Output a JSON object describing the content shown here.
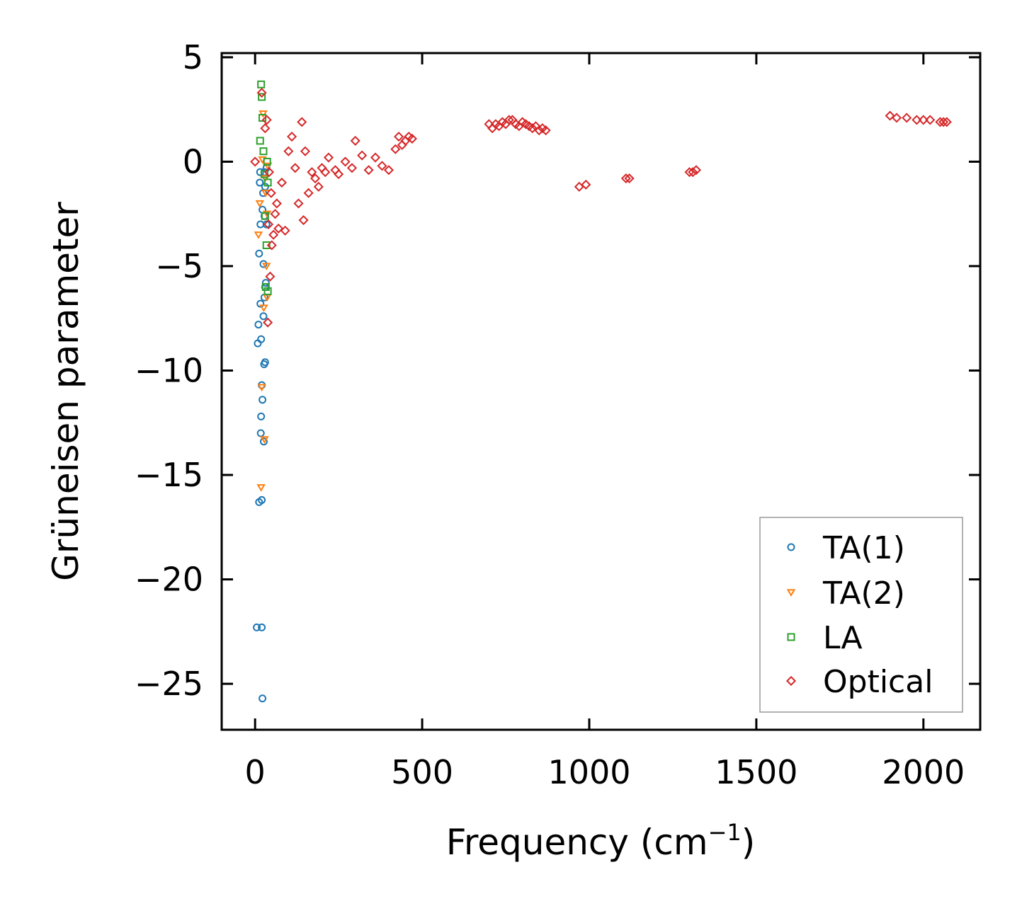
{
  "chart_data": {
    "type": "scatter",
    "title": "",
    "xlabel": "Frequency (cm",
    "xlabel_sup": "−1",
    "xlabel_tail": ")",
    "ylabel": "Grüneisen parameter",
    "xlim": [
      -100,
      2170
    ],
    "ylim": [
      -27.2,
      5.2
    ],
    "xticks": [
      0,
      500,
      1000,
      1500,
      2000
    ],
    "xtick_labels": [
      "0",
      "500",
      "1000",
      "1500",
      "2000"
    ],
    "yticks": [
      5,
      0,
      -5,
      -10,
      -15,
      -20,
      -25
    ],
    "ytick_labels": [
      "5",
      "0",
      "−5",
      "−10",
      "−15",
      "−20",
      "−25"
    ],
    "legend_position": "lower-right",
    "series": [
      {
        "name": "TA(1)",
        "marker": "circle",
        "color": "#1f77b4",
        "x": [
          5,
          8,
          10,
          12,
          12,
          14,
          15,
          16,
          16,
          17,
          18,
          18,
          20,
          20,
          20,
          22,
          22,
          22,
          24,
          25,
          25,
          26,
          27,
          28,
          28,
          28,
          30,
          30,
          30,
          32,
          34,
          34
        ],
        "y": [
          -22.3,
          -8.7,
          -7.8,
          -16.3,
          -4.4,
          -1.0,
          -0.5,
          -3.0,
          -6.8,
          -13.0,
          -8.5,
          -12.2,
          -10.7,
          -16.2,
          -22.3,
          -25.7,
          -11.4,
          -2.3,
          -1.5,
          -4.9,
          -7.4,
          -13.4,
          -9.7,
          -6.5,
          -0.5,
          -2.6,
          -9.6,
          -6.0,
          -1.2,
          -5.8,
          -3.0,
          -0.3
        ]
      },
      {
        "name": "TA(2)",
        "marker": "triangle-down",
        "color": "#ff7f0e",
        "x": [
          10,
          14,
          18,
          20,
          22,
          24,
          26,
          28,
          30,
          32,
          34,
          36,
          36,
          38
        ],
        "y": [
          -3.5,
          -2.0,
          -15.6,
          -10.8,
          0.1,
          2.3,
          -7.0,
          -13.3,
          -0.8,
          -1.5,
          -5.0,
          -2.5,
          -6.5,
          -0.2
        ]
      },
      {
        "name": "LA",
        "marker": "square",
        "color": "#2ca02c",
        "x": [
          15,
          18,
          20,
          22,
          25,
          28,
          30,
          32,
          34,
          36,
          38,
          38
        ],
        "y": [
          1.0,
          3.7,
          3.1,
          2.1,
          0.5,
          -0.6,
          -2.6,
          -6.0,
          -4.0,
          0.0,
          -1.0,
          -6.2
        ]
      },
      {
        "name": "Optical",
        "marker": "diamond",
        "color": "#d62728",
        "x": [
          0,
          20,
          30,
          35,
          38,
          40,
          42,
          45,
          48,
          50,
          55,
          60,
          65,
          70,
          80,
          90,
          100,
          110,
          120,
          130,
          140,
          145,
          150,
          160,
          170,
          180,
          190,
          200,
          210,
          220,
          240,
          250,
          270,
          290,
          300,
          320,
          340,
          360,
          380,
          400,
          420,
          430,
          440,
          450,
          460,
          470,
          700,
          710,
          720,
          730,
          740,
          750,
          760,
          770,
          780,
          790,
          800,
          810,
          820,
          830,
          840,
          850,
          860,
          870,
          970,
          990,
          1110,
          1120,
          1300,
          1310,
          1320,
          1900,
          1920,
          1950,
          1980,
          2000,
          2020,
          2050,
          2060,
          2070
        ],
        "y": [
          0.0,
          3.3,
          1.6,
          2.0,
          -7.7,
          -3.0,
          -0.5,
          -5.5,
          -1.5,
          -4.0,
          -3.5,
          -2.5,
          -2.0,
          -3.2,
          -1.0,
          -3.3,
          0.5,
          1.2,
          -0.3,
          -2.0,
          1.9,
          -2.8,
          0.5,
          -1.5,
          -0.5,
          -0.8,
          -1.2,
          -0.3,
          -0.5,
          0.2,
          -0.4,
          -0.6,
          0.0,
          -0.3,
          1.0,
          0.3,
          -0.4,
          0.2,
          -0.2,
          -0.4,
          0.6,
          1.2,
          0.8,
          1.0,
          1.2,
          1.1,
          1.8,
          1.6,
          1.8,
          1.7,
          1.9,
          1.8,
          2.0,
          2.0,
          1.8,
          1.7,
          1.9,
          1.8,
          1.7,
          1.6,
          1.7,
          1.5,
          1.6,
          1.5,
          -1.2,
          -1.1,
          -0.8,
          -0.8,
          -0.5,
          -0.5,
          -0.4,
          2.2,
          2.1,
          2.1,
          2.0,
          2.0,
          2.0,
          1.9,
          1.9,
          1.9
        ]
      }
    ]
  }
}
